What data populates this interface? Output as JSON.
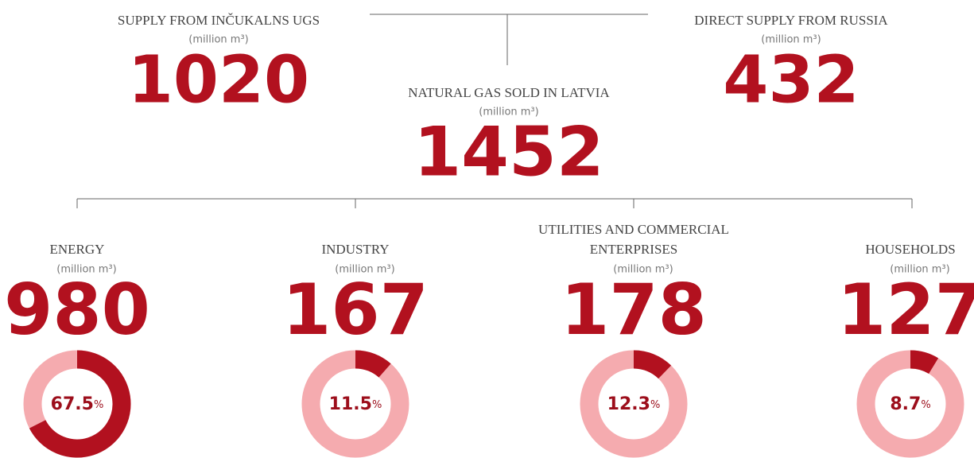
{
  "sources": [
    {
      "label": "SUPPLY FROM INČUKALNS UGS",
      "unit": "(million m³)",
      "value": 1020
    },
    {
      "label": "DIRECT SUPPLY FROM RUSSIA",
      "unit": "(million m³)",
      "value": 432
    }
  ],
  "total": {
    "label": "NATURAL GAS SOLD IN LATVIA",
    "unit": "(million m³)",
    "value": 1452
  },
  "segments": [
    {
      "label_lines": [
        "ENERGY"
      ],
      "unit": "(million m³)",
      "value": 980,
      "share": 67.5,
      "share_unit": "%"
    },
    {
      "label_lines": [
        "INDUSTRY"
      ],
      "unit": "(million m³)",
      "value": 167,
      "share": 11.5,
      "share_unit": "%"
    },
    {
      "label_lines": [
        "UTILITIES AND COMMERCIAL",
        "ENTERPRISES"
      ],
      "unit": "(million m³)",
      "value": 178,
      "share": 12.3,
      "share_unit": "%"
    },
    {
      "label_lines": [
        "HOUSEHOLDS"
      ],
      "unit": "(million m³)",
      "value": 127,
      "share": 8.7,
      "share_unit": "%"
    }
  ]
}
